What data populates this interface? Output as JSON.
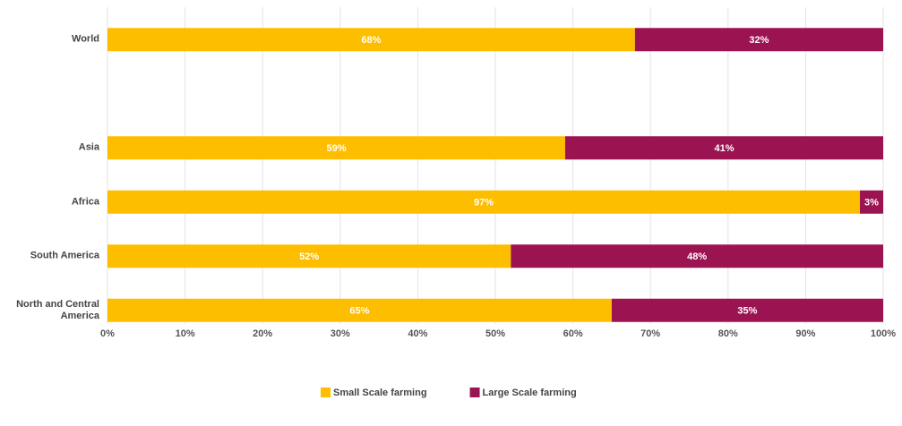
{
  "chart_data": {
    "type": "stacked_barh",
    "categories": [
      "World",
      null,
      "Asia",
      "Africa",
      "South America",
      "North and Central America"
    ],
    "series": [
      {
        "name": "Small Scale farming",
        "color": "#fdbe00",
        "values": [
          68,
          null,
          59,
          97,
          52,
          65
        ],
        "value_labels": [
          "68%",
          null,
          "59%",
          "97%",
          "52%",
          "65%"
        ]
      },
      {
        "name": "Large Scale farming",
        "color": "#9b1451",
        "values": [
          32,
          null,
          41,
          3,
          48,
          35
        ],
        "value_labels": [
          "32%",
          null,
          "41%",
          "3%",
          "48%",
          "35%"
        ]
      }
    ],
    "xlim": [
      0,
      100
    ],
    "xticks": [
      {
        "value": 0,
        "label": "0%"
      },
      {
        "value": 10,
        "label": "10%"
      },
      {
        "value": 20,
        "label": "20%"
      },
      {
        "value": 30,
        "label": "30%"
      },
      {
        "value": 40,
        "label": "40%"
      },
      {
        "value": 50,
        "label": "50%"
      },
      {
        "value": 60,
        "label": "60%"
      },
      {
        "value": 70,
        "label": "70%"
      },
      {
        "value": 80,
        "label": "80%"
      },
      {
        "value": 90,
        "label": "90%"
      },
      {
        "value": 100,
        "label": "100%"
      }
    ],
    "grid": true,
    "legend": "bottom"
  }
}
